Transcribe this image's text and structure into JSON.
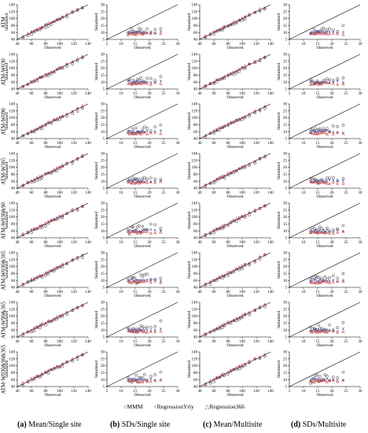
{
  "row_labels": [
    "ATM",
    "ATM-W030",
    "ATM-W090",
    "ATM-W365",
    "ATM-W030&90",
    "ATM-W030&365",
    "ATM-W90&365",
    "ATM-W030&90&365"
  ],
  "column_captions": [
    {
      "letter": "(a)",
      "text": " Mean/Single site"
    },
    {
      "letter": "(b)",
      "text": " SDs/Single site"
    },
    {
      "letter": "(c)",
      "text": " Mean/Multisite"
    },
    {
      "letter": "(d)",
      "text": " SDs/Multisite"
    }
  ],
  "legend": [
    {
      "symbol": "o",
      "label": "MMM",
      "color": "#555555"
    },
    {
      "symbol": "×",
      "label": "RegressionYrly",
      "color": "#4a55b5"
    },
    {
      "symbol": "△",
      "label": "Regression366",
      "color": "#c53a3a"
    }
  ],
  "chart_data": {
    "type": "scatter",
    "layout": "8 rows x 4 columns of scatter plots with 1:1 line",
    "series": [
      {
        "name": "MMM",
        "marker": "circle",
        "color": "#555555"
      },
      {
        "name": "RegressionYrly",
        "marker": "x",
        "color": "#4a55b5"
      },
      {
        "name": "Regression366",
        "marker": "triangle",
        "color": "#c53a3a"
      }
    ],
    "axes": {
      "mean": {
        "xlabel": "Observed",
        "ylabel": "Simulated",
        "xlim": [
          40,
          140
        ],
        "ylim": [
          40,
          140
        ],
        "xticks": [
          40,
          60,
          80,
          100,
          120,
          140
        ],
        "yticks": [
          40,
          60,
          80,
          100,
          120,
          140
        ]
      },
      "sd": {
        "xlabel": "Observed",
        "ylabel": "Simulated",
        "xlim": [
          5,
          30
        ],
        "ylim": [
          5,
          30
        ],
        "xticks": [
          5,
          10,
          15,
          20,
          25,
          30
        ],
        "yticks": [
          5,
          10,
          15,
          20,
          25,
          30
        ]
      }
    },
    "mean_observed": [
      48,
      55,
      60,
      64,
      68,
      72,
      75,
      80,
      84,
      88,
      92,
      96,
      100,
      104,
      110,
      118,
      125,
      132
    ],
    "sd_observed": [
      12.5,
      13,
      13.8,
      14.2,
      14.8,
      15.3,
      15.8,
      16.4,
      17,
      17.6,
      18.3,
      19.2,
      20.5,
      22,
      24
    ],
    "panels": [
      {
        "row": 0,
        "column": 0,
        "kind": "mean",
        "bias": {
          "MMM": -2,
          "RegressionYrly": 0,
          "Regression366": 1
        }
      },
      {
        "row": 0,
        "column": 1,
        "kind": "sd",
        "mean_sim": {
          "MMM": 10.5,
          "RegressionYrly": 9.8,
          "Regression366": 9.0
        }
      },
      {
        "row": 0,
        "column": 2,
        "kind": "mean",
        "bias": {
          "MMM": -2,
          "RegressionYrly": 0,
          "Regression366": 1
        }
      },
      {
        "row": 0,
        "column": 3,
        "kind": "sd",
        "mean_sim": {
          "MMM": 10.5,
          "RegressionYrly": 9.8,
          "Regression366": 9.0
        }
      }
    ]
  }
}
